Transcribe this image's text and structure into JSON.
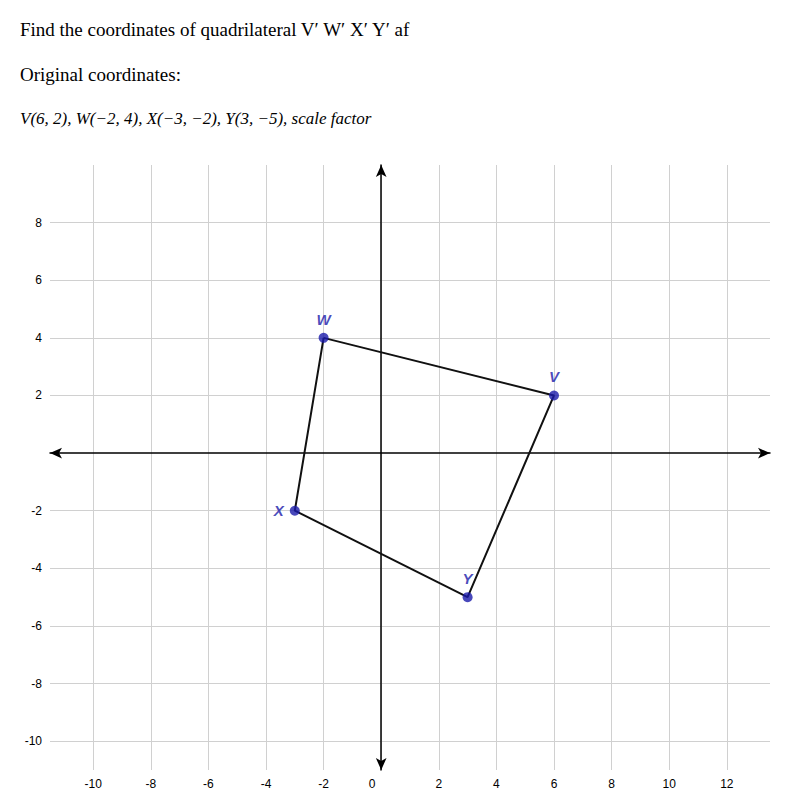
{
  "chart_data": {
    "type": "scatter",
    "title": "Find the coordinates of quadrilateral V′ W′ X′ Y′ af",
    "subtitle": "Original coordinates:",
    "annotations": [
      "V(6, 2), W(−2, 4), X(−3, −2), Y(3, −5), scale factor"
    ],
    "series": [
      {
        "type": "line",
        "color": "#111111",
        "x": [
          -2,
          6,
          3,
          -3,
          -2
        ],
        "values": [
          4,
          2,
          -5,
          -2,
          4
        ]
      },
      {
        "type": "scatter",
        "color": "#1a1aaa",
        "x": [
          6,
          -2,
          -3,
          3
        ],
        "values": [
          2,
          4,
          -2,
          -5
        ],
        "labels": [
          "V",
          "W",
          "X",
          "Y"
        ]
      }
    ],
    "xlim": [
      -11.5,
      13.5
    ],
    "ylim": [
      -11,
      10
    ],
    "xticks": [
      -10,
      -8,
      -6,
      -4,
      -2,
      0,
      2,
      4,
      6,
      8,
      10,
      12
    ],
    "yticks": [
      -10,
      -8,
      -6,
      -4,
      -2,
      2,
      4,
      6,
      8
    ],
    "grid": true
  }
}
